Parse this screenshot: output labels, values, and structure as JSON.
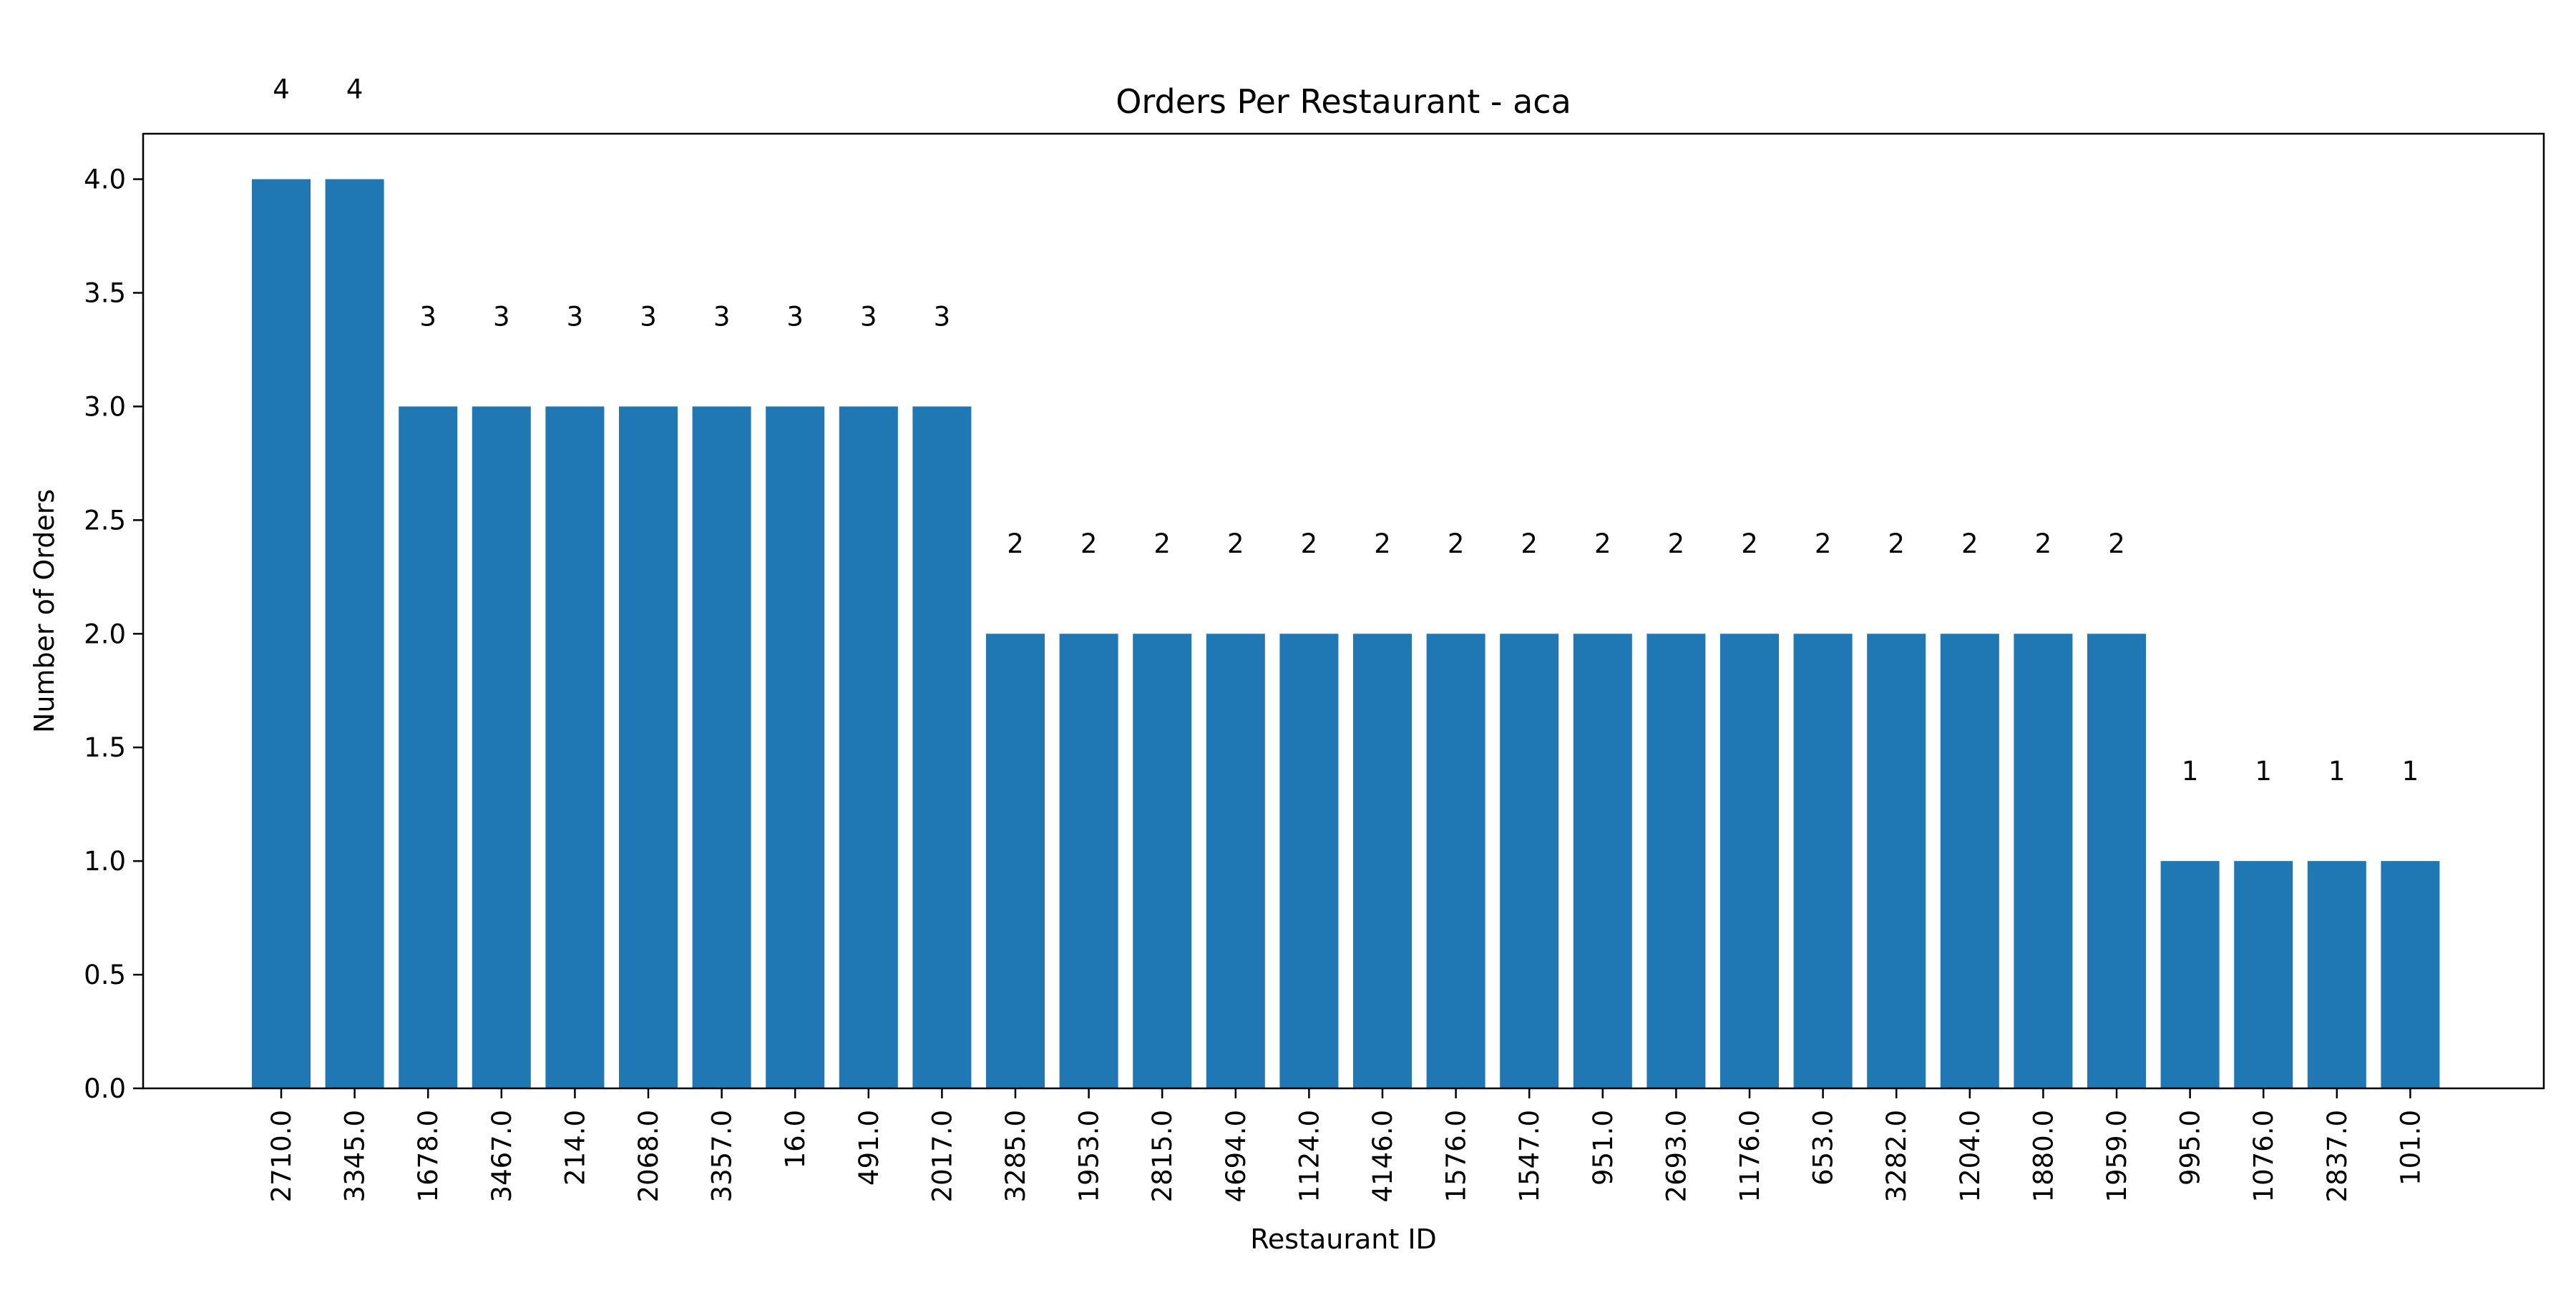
{
  "chart_data": {
    "type": "bar",
    "title": "Orders Per Restaurant - aca",
    "xlabel": "Restaurant ID",
    "ylabel": "Number of Orders",
    "ylim": [
      0,
      4.2
    ],
    "yticks": [
      "0.0",
      "0.5",
      "1.0",
      "1.5",
      "2.0",
      "2.5",
      "3.0",
      "3.5",
      "4.0"
    ],
    "categories": [
      "2710.0",
      "3345.0",
      "1678.0",
      "3467.0",
      "214.0",
      "2068.0",
      "3357.0",
      "16.0",
      "491.0",
      "2017.0",
      "3285.0",
      "1953.0",
      "2815.0",
      "4694.0",
      "1124.0",
      "4146.0",
      "1576.0",
      "1547.0",
      "951.0",
      "2693.0",
      "1176.0",
      "653.0",
      "3282.0",
      "1204.0",
      "1880.0",
      "1959.0",
      "995.0",
      "1076.0",
      "2837.0",
      "101.0"
    ],
    "values": [
      4,
      4,
      3,
      3,
      3,
      3,
      3,
      3,
      3,
      3,
      2,
      2,
      2,
      2,
      2,
      2,
      2,
      2,
      2,
      2,
      2,
      2,
      2,
      2,
      2,
      2,
      1,
      1,
      1,
      1
    ],
    "data_labels": [
      "4",
      "4",
      "3",
      "3",
      "3",
      "3",
      "3",
      "3",
      "3",
      "3",
      "2",
      "2",
      "2",
      "2",
      "2",
      "2",
      "2",
      "2",
      "2",
      "2",
      "2",
      "2",
      "2",
      "2",
      "2",
      "2",
      "1",
      "1",
      "1",
      "1"
    ],
    "bar_color": "#1f77b4",
    "grid": false,
    "legend": "none"
  }
}
